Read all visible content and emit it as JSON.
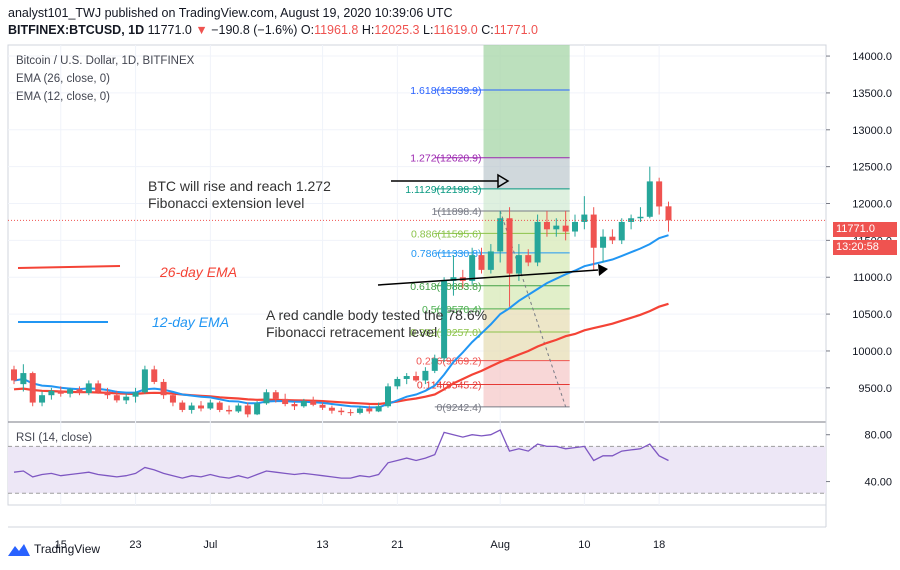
{
  "header": {
    "line1": "analyst101_TWJ published on TradingView.com, August 19, 2020 10:39:06 UTC",
    "symbol": "BITFINEX:BTCUSD, 1D",
    "last": "11771.0",
    "change_arrow": "▼",
    "change": "−190.8 (−1.6%)",
    "o_label": "O:",
    "o": "11961.8",
    "h_label": "H:",
    "h": "12025.3",
    "l_label": "L:",
    "l": "11619.0",
    "c_label": "C:",
    "c": "11771.0"
  },
  "legend": {
    "title": "Bitcoin / U.S. Dollar, 1D, BITFINEX",
    "ema26": "EMA (26, close, 0)",
    "ema12": "EMA (12, close, 0)"
  },
  "annotations": {
    "rise_line1": "BTC will rise and reach 1.272",
    "rise_line2": "Fibonacci extension level",
    "red_line1": "A red candle body tested the 78.6%",
    "red_line2": "Fibonacci retracement level",
    "ema26_label": "26-day EMA",
    "ema12_label": "12-day EMA"
  },
  "price_tags": {
    "last_price": "11771.0",
    "countdown": "13:20:58"
  },
  "rsi_legend": "RSI (14, close)",
  "brand": "TradingView",
  "colors": {
    "up": "#26a69a",
    "down": "#ef5350",
    "ema12": "#2196f3",
    "ema26": "#f44336",
    "rsi": "#7e57c2",
    "rsi_band": "#ede7f6"
  },
  "chart_data": {
    "type": "candlestick",
    "price_axis": {
      "ticks": [
        9500,
        10000,
        10500,
        11000,
        11500,
        12000,
        12500,
        13000,
        13500,
        14000
      ],
      "range": [
        9050,
        14150
      ]
    },
    "time_axis": {
      "tick_labels": [
        {
          "label": "15",
          "index": 5
        },
        {
          "label": "23",
          "index": 13
        },
        {
          "label": "Jul",
          "index": 21
        },
        {
          "label": "13",
          "index": 33
        },
        {
          "label": "21",
          "index": 41
        },
        {
          "label": "Aug",
          "index": 52
        },
        {
          "label": "10",
          "index": 61
        },
        {
          "label": "18",
          "index": 69
        }
      ]
    },
    "ohlc": [
      [
        9750,
        9800,
        9550,
        9600
      ],
      [
        9550,
        9820,
        9450,
        9700
      ],
      [
        9700,
        9720,
        9250,
        9300
      ],
      [
        9300,
        9450,
        9250,
        9400
      ],
      [
        9400,
        9500,
        9340,
        9460
      ],
      [
        9460,
        9520,
        9380,
        9420
      ],
      [
        9420,
        9500,
        9370,
        9480
      ],
      [
        9480,
        9520,
        9400,
        9430
      ],
      [
        9430,
        9600,
        9400,
        9560
      ],
      [
        9560,
        9600,
        9420,
        9450
      ],
      [
        9450,
        9500,
        9350,
        9400
      ],
      [
        9400,
        9460,
        9300,
        9330
      ],
      [
        9330,
        9420,
        9280,
        9380
      ],
      [
        9380,
        9500,
        9300,
        9440
      ],
      [
        9440,
        9800,
        9420,
        9750
      ],
      [
        9750,
        9800,
        9550,
        9580
      ],
      [
        9580,
        9620,
        9350,
        9400
      ],
      [
        9400,
        9420,
        9250,
        9300
      ],
      [
        9300,
        9330,
        9170,
        9200
      ],
      [
        9200,
        9300,
        9150,
        9260
      ],
      [
        9260,
        9320,
        9180,
        9220
      ],
      [
        9220,
        9340,
        9200,
        9300
      ],
      [
        9300,
        9320,
        9170,
        9200
      ],
      [
        9200,
        9260,
        9140,
        9180
      ],
      [
        9180,
        9290,
        9160,
        9260
      ],
      [
        9260,
        9300,
        9100,
        9140
      ],
      [
        9140,
        9320,
        9130,
        9290
      ],
      [
        9290,
        9480,
        9270,
        9440
      ],
      [
        9440,
        9470,
        9300,
        9350
      ],
      [
        9350,
        9420,
        9250,
        9280
      ],
      [
        9280,
        9310,
        9200,
        9250
      ],
      [
        9250,
        9350,
        9230,
        9320
      ],
      [
        9320,
        9380,
        9250,
        9270
      ],
      [
        9270,
        9300,
        9200,
        9230
      ],
      [
        9230,
        9260,
        9150,
        9190
      ],
      [
        9190,
        9230,
        9130,
        9170
      ],
      [
        9170,
        9210,
        9120,
        9160
      ],
      [
        9160,
        9250,
        9140,
        9220
      ],
      [
        9220,
        9260,
        9150,
        9180
      ],
      [
        9180,
        9300,
        9170,
        9250
      ],
      [
        9250,
        9560,
        9230,
        9520
      ],
      [
        9520,
        9650,
        9480,
        9620
      ],
      [
        9620,
        9700,
        9550,
        9660
      ],
      [
        9660,
        9720,
        9580,
        9600
      ],
      [
        9600,
        9780,
        9550,
        9730
      ],
      [
        9730,
        9950,
        9700,
        9900
      ],
      [
        9900,
        11000,
        9850,
        10950
      ],
      [
        10950,
        11300,
        10750,
        11000
      ],
      [
        11000,
        11100,
        10850,
        10950
      ],
      [
        10950,
        11400,
        10900,
        11300
      ],
      [
        11300,
        11400,
        11050,
        11100
      ],
      [
        11100,
        11450,
        11050,
        11350
      ],
      [
        11350,
        11900,
        11200,
        11800
      ],
      [
        11800,
        11950,
        10600,
        11050
      ],
      [
        11050,
        11450,
        10950,
        11300
      ],
      [
        11300,
        11380,
        11150,
        11200
      ],
      [
        11200,
        11850,
        11150,
        11750
      ],
      [
        11750,
        11900,
        11550,
        11650
      ],
      [
        11650,
        11800,
        11550,
        11700
      ],
      [
        11700,
        11900,
        11500,
        11620
      ],
      [
        11620,
        11850,
        11550,
        11750
      ],
      [
        11750,
        12100,
        11650,
        11850
      ],
      [
        11850,
        11950,
        11100,
        11400
      ],
      [
        11400,
        11650,
        11200,
        11550
      ],
      [
        11550,
        11650,
        11450,
        11500
      ],
      [
        11500,
        11800,
        11450,
        11750
      ],
      [
        11750,
        11850,
        11650,
        11800
      ],
      [
        11800,
        11950,
        11750,
        11820
      ],
      [
        11820,
        12500,
        11800,
        12300
      ],
      [
        12300,
        12350,
        11850,
        11960
      ],
      [
        11961.8,
        12025.3,
        11619.0,
        11771.0
      ]
    ],
    "ema12": [
      9600,
      9620,
      9560,
      9530,
      9520,
      9500,
      9490,
      9480,
      9495,
      9485,
      9470,
      9445,
      9435,
      9435,
      9480,
      9490,
      9475,
      9445,
      9410,
      9395,
      9380,
      9370,
      9345,
      9320,
      9315,
      9290,
      9290,
      9315,
      9320,
      9320,
      9310,
      9310,
      9305,
      9295,
      9280,
      9265,
      9250,
      9245,
      9235,
      9235,
      9280,
      9330,
      9380,
      9410,
      9460,
      9530,
      9680,
      9850,
      9980,
      10120,
      10240,
      10360,
      10500,
      10580,
      10680,
      10760,
      10840,
      10920,
      10980,
      11040,
      11090,
      11150,
      11180,
      11210,
      11240,
      11290,
      11340,
      11390,
      11450,
      11530,
      11570
    ],
    "ema26": [
      9480,
      9490,
      9470,
      9460,
      9455,
      9450,
      9445,
      9440,
      9440,
      9437,
      9432,
      9425,
      9420,
      9418,
      9428,
      9432,
      9430,
      9422,
      9410,
      9400,
      9392,
      9385,
      9372,
      9362,
      9355,
      9343,
      9338,
      9340,
      9338,
      9334,
      9330,
      9328,
      9325,
      9320,
      9312,
      9303,
      9295,
      9290,
      9282,
      9280,
      9295,
      9315,
      9338,
      9355,
      9380,
      9410,
      9480,
      9560,
      9620,
      9680,
      9730,
      9790,
      9850,
      9900,
      9950,
      10000,
      10060,
      10110,
      10150,
      10200,
      10230,
      10280,
      10310,
      10340,
      10370,
      10410,
      10450,
      10490,
      10540,
      10600,
      10640
    ],
    "rsi": {
      "ticks": [
        40,
        80
      ],
      "band": [
        30,
        70
      ],
      "range": [
        20,
        90
      ],
      "values": [
        48,
        49,
        44,
        46,
        47,
        45,
        46,
        47,
        48,
        46,
        45,
        44,
        45,
        47,
        52,
        50,
        47,
        45,
        43,
        45,
        44,
        46,
        44,
        43,
        45,
        43,
        46,
        49,
        48,
        47,
        46,
        47,
        46,
        45,
        44,
        43,
        43,
        45,
        44,
        46,
        56,
        58,
        60,
        58,
        60,
        63,
        82,
        80,
        78,
        80,
        79,
        80,
        84,
        66,
        68,
        66,
        72,
        70,
        70,
        68,
        69,
        70,
        58,
        62,
        62,
        66,
        67,
        68,
        72,
        62,
        58
      ]
    },
    "fibonacci": [
      {
        "label": "1.618(13539.9)",
        "price": 13539.9,
        "color": "#2962ff"
      },
      {
        "label": "1.272(12620.9)",
        "price": 12620.9,
        "color": "#9c27b0"
      },
      {
        "label": "1.1129(12198.3)",
        "price": 12198.3,
        "color": "#089981"
      },
      {
        "label": "1(11898.4)",
        "price": 11898.4,
        "color": "#787b86"
      },
      {
        "label": "0.886(11595.6)",
        "price": 11595.6,
        "color": "#8bc34a"
      },
      {
        "label": "0.786(11330.8)",
        "price": 11330.8,
        "color": "#2196f3"
      },
      {
        "label": "0.618(10883.8)",
        "price": 10883.8,
        "color": "#43a047"
      },
      {
        "label": "0.5(10570.4)",
        "price": 10570.4,
        "color": "#4caf50"
      },
      {
        "label": "0.382(10257.0)",
        "price": 10257.0,
        "color": "#8bc34a"
      },
      {
        "label": "0.236(9869.2)",
        "price": 9869.2,
        "color": "#ef5350"
      },
      {
        "label": "0.114(9545.2)",
        "price": 9545.2,
        "color": "#e53935"
      },
      {
        "label": "0(9242.4)",
        "price": 9242.4,
        "color": "#787b86"
      }
    ]
  }
}
